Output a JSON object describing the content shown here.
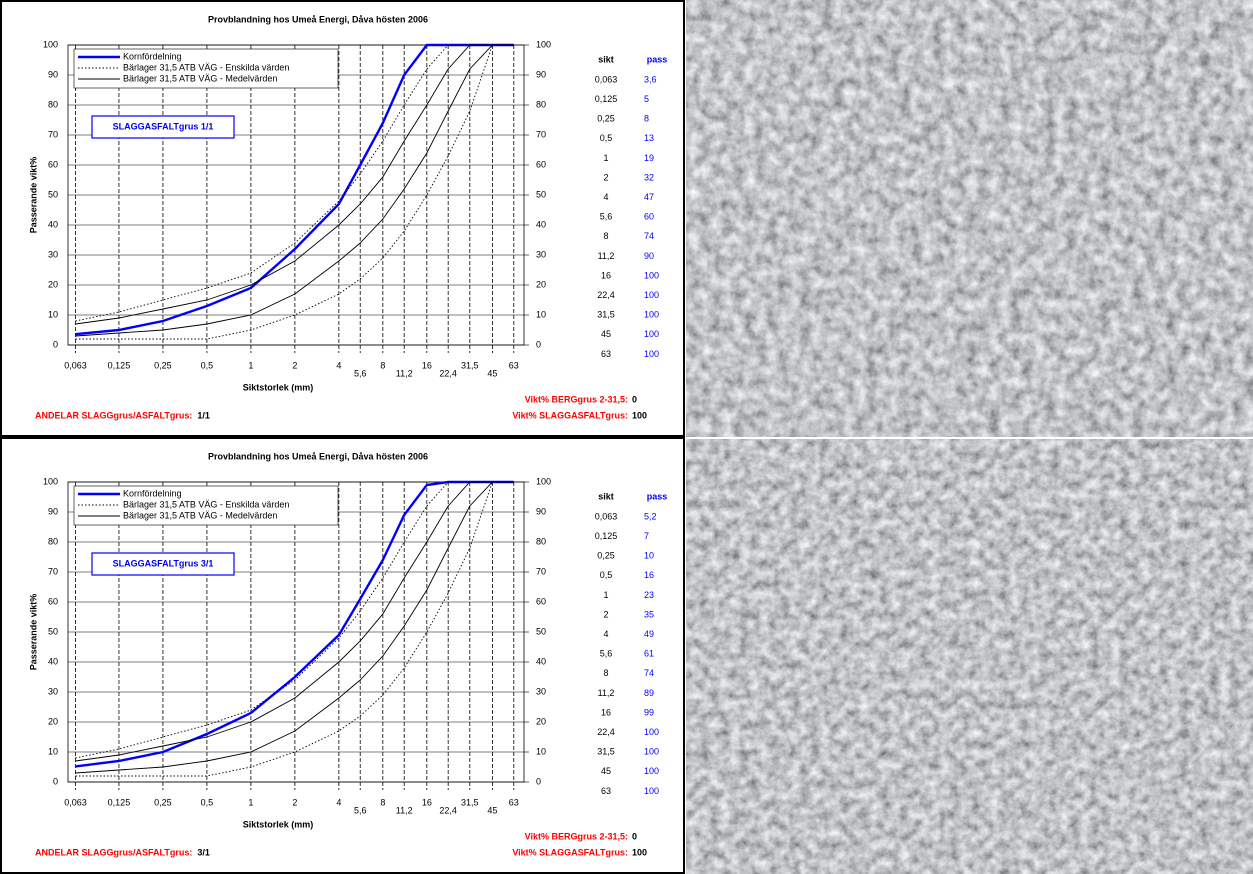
{
  "chart_data": [
    {
      "type": "line",
      "title": "Provblandning hos Umeå Energi, Dåva hösten 2006",
      "x_label": "Siktstorlek (mm)",
      "y_label": "Passerande vikt%",
      "annotation": "SLAGGASFALTgrus 1/1",
      "table_headers": [
        "sikt",
        "pass"
      ],
      "x": [
        0.063,
        0.125,
        0.25,
        0.5,
        1,
        2,
        4,
        5.6,
        8,
        11.2,
        16,
        22.4,
        31.5,
        45,
        63
      ],
      "xscale": "log",
      "xlim": [
        0.056,
        74
      ],
      "xticks": [
        {
          "value": 0.063,
          "label": "0,063"
        },
        {
          "value": 0.125,
          "label": "0,125"
        },
        {
          "value": 0.25,
          "label": "0,25"
        },
        {
          "value": 0.5,
          "label": "0,5"
        },
        1,
        2,
        4,
        {
          "value": 5.6,
          "label": "5,6"
        },
        8,
        {
          "value": 11.2,
          "label": "11,2"
        },
        16,
        {
          "value": 22.4,
          "label": "22,4"
        },
        {
          "value": 31.5,
          "label": "31,5"
        },
        45,
        63
      ],
      "ylim": [
        0,
        100
      ],
      "yticks": [
        0,
        10,
        20,
        30,
        40,
        50,
        60,
        70,
        80,
        90,
        100
      ],
      "y2lim": [
        0,
        100
      ],
      "y2ticks": [
        0,
        10,
        20,
        30,
        40,
        50,
        60,
        70,
        80,
        90,
        100
      ],
      "grid": true,
      "legend": "top-left",
      "series": [
        {
          "name": "Kornfördelning",
          "color": "#0000ff",
          "values": [
            3.6,
            5,
            8,
            13,
            19,
            32,
            47,
            60,
            74,
            90,
            100,
            100,
            100,
            100,
            100
          ],
          "value_labels": [
            "3,6",
            "5",
            "8",
            "13",
            "19",
            "32",
            "47",
            "60",
            "74",
            "90",
            "100",
            "100",
            "100",
            "100",
            "100"
          ]
        },
        {
          "name": "Bärlager 31,5  ATB VÄG - Enskilda värden",
          "color": "#000000",
          "dash": "dotted",
          "lower": [
            2,
            2,
            2,
            2,
            5,
            10,
            17,
            22,
            29,
            38,
            50,
            63,
            78,
            100,
            100
          ],
          "upper": [
            8,
            11,
            15,
            19,
            24,
            34,
            48,
            57,
            68,
            80,
            92,
            100,
            100,
            100,
            100
          ]
        },
        {
          "name": "Bärlager 31,5  ATB VÄG - Medelvärden",
          "color": "#000000",
          "lower": [
            3,
            4,
            5,
            7,
            10,
            17,
            28,
            34,
            42,
            52,
            64,
            78,
            92,
            100,
            100
          ],
          "upper": [
            7,
            9,
            12,
            15,
            20,
            28,
            40,
            47,
            56,
            68,
            80,
            92,
            100,
            100,
            100
          ]
        }
      ],
      "notes": [
        {
          "label": "Vikt% BERGgrus 2-31,5:",
          "value": 0
        },
        {
          "label": "ANDELAR SLAGGgrus/ASFALTgrus:",
          "value": "1/1"
        },
        {
          "label": "Vikt% SLAGGASFALTgrus:",
          "value": 100
        }
      ]
    },
    {
      "type": "line",
      "title": "Provblandning hos Umeå Energi, Dåva hösten 2006",
      "x_label": "Siktstorlek (mm)",
      "y_label": "Passerande vikt%",
      "annotation": "SLAGGASFALTgrus 3/1",
      "table_headers": [
        "sikt",
        "pass"
      ],
      "x": [
        0.063,
        0.125,
        0.25,
        0.5,
        1,
        2,
        4,
        5.6,
        8,
        11.2,
        16,
        22.4,
        31.5,
        45,
        63
      ],
      "xscale": "log",
      "xlim": [
        0.056,
        74
      ],
      "xticks": [
        {
          "value": 0.063,
          "label": "0,063"
        },
        {
          "value": 0.125,
          "label": "0,125"
        },
        {
          "value": 0.25,
          "label": "0,25"
        },
        {
          "value": 0.5,
          "label": "0,5"
        },
        1,
        2,
        4,
        {
          "value": 5.6,
          "label": "5,6"
        },
        8,
        {
          "value": 11.2,
          "label": "11,2"
        },
        16,
        {
          "value": 22.4,
          "label": "22,4"
        },
        {
          "value": 31.5,
          "label": "31,5"
        },
        45,
        63
      ],
      "ylim": [
        0,
        100
      ],
      "yticks": [
        0,
        10,
        20,
        30,
        40,
        50,
        60,
        70,
        80,
        90,
        100
      ],
      "y2lim": [
        0,
        100
      ],
      "y2ticks": [
        0,
        10,
        20,
        30,
        40,
        50,
        60,
        70,
        80,
        90,
        100
      ],
      "grid": true,
      "legend": "top-left",
      "series": [
        {
          "name": "Kornfördelning",
          "color": "#0000ff",
          "values": [
            5.2,
            7,
            10,
            16,
            23,
            35,
            49,
            61,
            74,
            89,
            99,
            100,
            100,
            100,
            100
          ],
          "value_labels": [
            "5,2",
            "7",
            "10",
            "16",
            "23",
            "35",
            "49",
            "61",
            "74",
            "89",
            "99",
            "100",
            "100",
            "100",
            "100"
          ]
        },
        {
          "name": "Bärlager 31,5  ATB VÄG - Enskilda värden",
          "color": "#000000",
          "dash": "dotted",
          "lower": [
            2,
            2,
            2,
            2,
            5,
            10,
            17,
            22,
            29,
            38,
            50,
            63,
            78,
            100,
            100
          ],
          "upper": [
            8,
            11,
            15,
            19,
            24,
            34,
            48,
            57,
            68,
            80,
            92,
            100,
            100,
            100,
            100
          ]
        },
        {
          "name": "Bärlager 31,5  ATB VÄG - Medelvärden",
          "color": "#000000",
          "lower": [
            3,
            4,
            5,
            7,
            10,
            17,
            28,
            34,
            42,
            52,
            64,
            78,
            92,
            100,
            100
          ],
          "upper": [
            7,
            9,
            12,
            15,
            20,
            28,
            40,
            47,
            56,
            68,
            80,
            92,
            100,
            100,
            100
          ]
        }
      ],
      "notes": [
        {
          "label": "Vikt% BERGgrus 2-31,5:",
          "value": 0
        },
        {
          "label": "ANDELAR SLAGGgrus/ASFALTgrus:",
          "value": "3/1"
        },
        {
          "label": "Vikt% SLAGGASFALTgrus:",
          "value": 100
        }
      ]
    }
  ]
}
